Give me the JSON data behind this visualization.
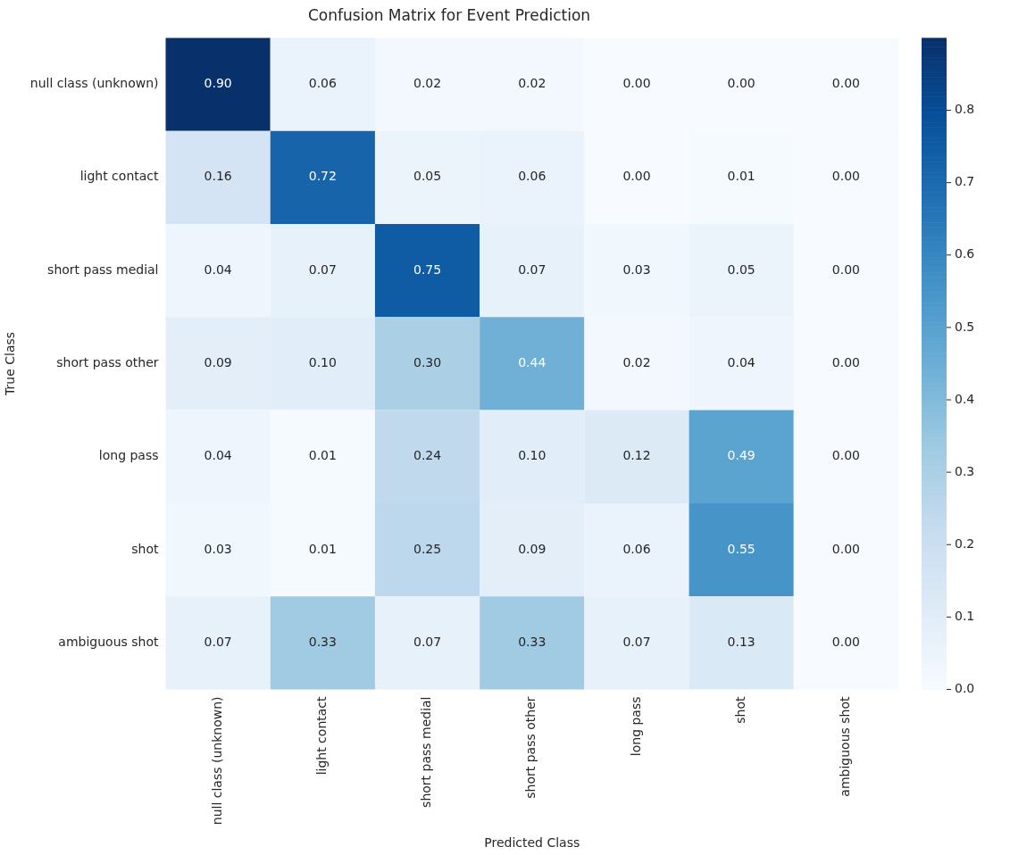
{
  "chart_data": {
    "type": "heatmap",
    "title": "Confusion Matrix for Event Prediction",
    "xlabel": "Predicted Class",
    "ylabel": "True Class",
    "categories": [
      "null class (unknown)",
      "light contact",
      "short pass medial",
      "short pass other",
      "long pass",
      "shot",
      "ambiguous shot"
    ],
    "y_categories": [
      "null class (unknown)",
      "light contact",
      "short pass medial",
      "short pass other",
      "long pass",
      "shot",
      "ambiguous shot"
    ],
    "cells": [
      [
        0.9,
        0.06,
        0.02,
        0.02,
        0.0,
        0.0,
        0.0
      ],
      [
        0.16,
        0.72,
        0.05,
        0.06,
        0.0,
        0.01,
        0.0
      ],
      [
        0.04,
        0.07,
        0.75,
        0.07,
        0.03,
        0.05,
        0.0
      ],
      [
        0.09,
        0.1,
        0.3,
        0.44,
        0.02,
        0.04,
        0.0
      ],
      [
        0.04,
        0.01,
        0.24,
        0.1,
        0.12,
        0.49,
        0.0
      ],
      [
        0.03,
        0.01,
        0.25,
        0.09,
        0.06,
        0.55,
        0.0
      ],
      [
        0.07,
        0.33,
        0.07,
        0.33,
        0.07,
        0.13,
        0.0
      ]
    ],
    "cell_labels": [
      [
        "0.90",
        "0.06",
        "0.02",
        "0.02",
        "0.00",
        "0.00",
        "0.00"
      ],
      [
        "0.16",
        "0.72",
        "0.05",
        "0.06",
        "0.00",
        "0.01",
        "0.00"
      ],
      [
        "0.04",
        "0.07",
        "0.75",
        "0.07",
        "0.03",
        "0.05",
        "0.00"
      ],
      [
        "0.09",
        "0.10",
        "0.30",
        "0.44",
        "0.02",
        "0.04",
        "0.00"
      ],
      [
        "0.04",
        "0.01",
        "0.24",
        "0.10",
        "0.12",
        "0.49",
        "0.00"
      ],
      [
        "0.03",
        "0.01",
        "0.25",
        "0.09",
        "0.06",
        "0.55",
        "0.00"
      ],
      [
        "0.07",
        "0.33",
        "0.07",
        "0.33",
        "0.07",
        "0.13",
        "0.00"
      ]
    ],
    "clim": [
      0,
      0.9
    ],
    "cticks": [
      {
        "value": 0,
        "label": "0.0"
      },
      {
        "value": 0.1,
        "label": "0.1"
      },
      {
        "value": 0.2,
        "label": "0.2"
      },
      {
        "value": 0.3,
        "label": "0.3"
      },
      {
        "value": 0.4,
        "label": "0.4"
      },
      {
        "value": 0.5,
        "label": "0.5"
      },
      {
        "value": 0.6,
        "label": "0.6"
      },
      {
        "value": 0.7,
        "label": "0.7"
      },
      {
        "value": 0.8,
        "label": "0.8"
      }
    ]
  }
}
